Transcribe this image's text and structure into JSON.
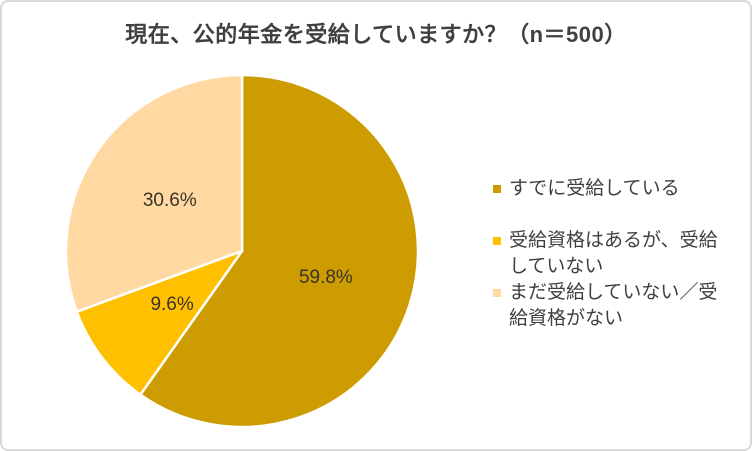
{
  "chart_data": {
    "type": "pie",
    "title": "現在、公的年金を受給していますか？（n＝500）",
    "n": 500,
    "slices": [
      {
        "label": "すでに受給している",
        "value": 59.8,
        "pct_label": "59.8%",
        "color": "#CC9C00"
      },
      {
        "label": "受給資格はあるが、受給していない",
        "value": 9.6,
        "pct_label": "9.6%",
        "color": "#FFC000"
      },
      {
        "label": "まだ受給していない／受給資格がない",
        "value": 30.6,
        "pct_label": "30.6%",
        "color": "#FFD9A1"
      }
    ],
    "start_angle_deg": 0,
    "direction": "clockwise",
    "legend_position": "right",
    "separator_color": "#FFFFFF",
    "label_color": "#3A342A",
    "label_font_px": 19,
    "title_color": "#404040",
    "frame_border_color": "#D9D9D9"
  }
}
